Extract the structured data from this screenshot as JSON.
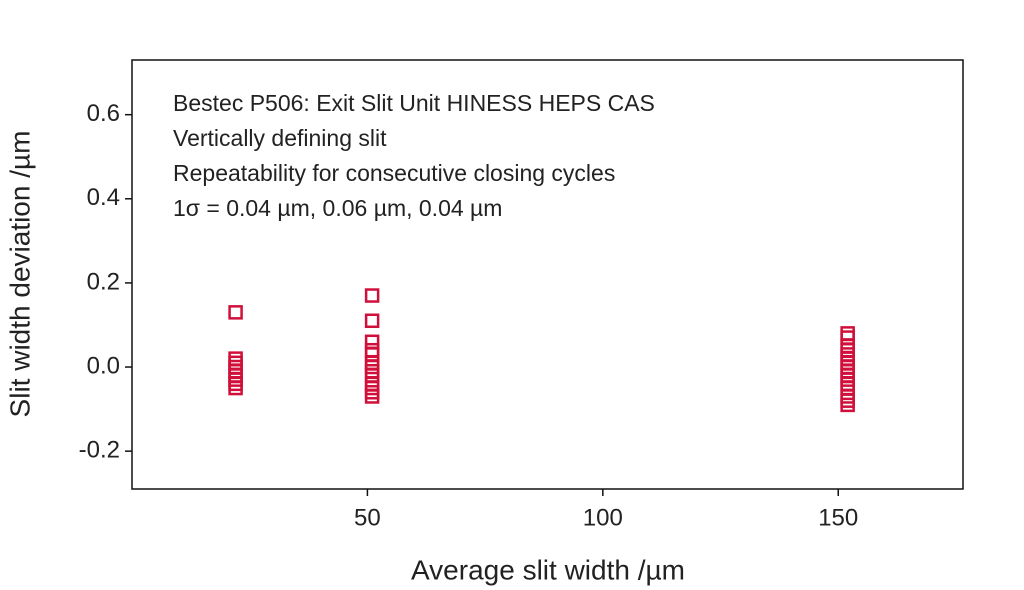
{
  "chart_data": {
    "type": "scatter",
    "annotations": [
      "Bestec P506: Exit Slit Unit HINESS HEPS CAS",
      "Vertically defining slit",
      "Repeatability for consecutive closing cycles",
      "1σ = 0.04 µm, 0.06 µm, 0.04 µm"
    ],
    "x_label": "Average slit width /µm",
    "y_label": "Slit width deviation /µm",
    "x": [
      22,
      22,
      22,
      22,
      22,
      22,
      22,
      22,
      22,
      51,
      51,
      51,
      51,
      51,
      51,
      51,
      51,
      51,
      51,
      51,
      51,
      51,
      152,
      152,
      152,
      152,
      152,
      152,
      152,
      152,
      152,
      152,
      152,
      152,
      152,
      152,
      152,
      152
    ],
    "y": [
      0.13,
      0.02,
      0.01,
      0.0,
      -0.01,
      -0.02,
      -0.03,
      -0.04,
      -0.05,
      0.17,
      0.11,
      0.06,
      0.04,
      0.03,
      0.01,
      0.0,
      -0.01,
      -0.02,
      -0.04,
      -0.05,
      -0.06,
      -0.07,
      0.08,
      0.07,
      0.05,
      0.04,
      0.03,
      0.02,
      0.01,
      0.0,
      -0.01,
      -0.02,
      -0.03,
      -0.04,
      -0.05,
      -0.07,
      -0.08,
      -0.09
    ],
    "color": "#d0103a",
    "marker": "square",
    "xlim": [
      0,
      176.5
    ],
    "xticks": [
      50,
      100,
      150
    ],
    "ylim": [
      -0.29,
      0.73
    ],
    "yticks": [
      0.6,
      0.4,
      0.2,
      {
        "value": 0,
        "label": "0.0"
      },
      -0.2
    ],
    "grid": false
  }
}
